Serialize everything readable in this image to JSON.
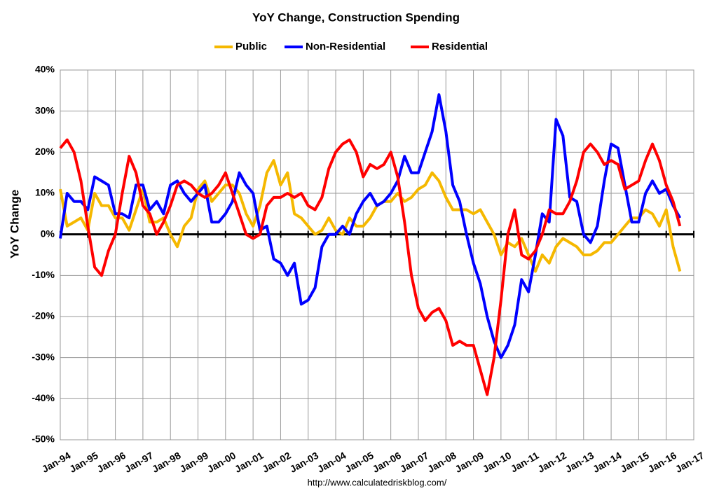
{
  "chart_data": {
    "type": "line",
    "title": "YoY Change,  Construction Spending",
    "y_label": "YoY Change",
    "source": "http://www.calculatedriskblog.com/",
    "grid": true,
    "legend": "top",
    "xlim": [
      1994,
      2017
    ],
    "xticks": [
      {
        "value": 1994,
        "label": "Jan-94"
      },
      {
        "value": 1995,
        "label": "Jan-95"
      },
      {
        "value": 1996,
        "label": "Jan-96"
      },
      {
        "value": 1997,
        "label": "Jan-97"
      },
      {
        "value": 1998,
        "label": "Jan-98"
      },
      {
        "value": 1999,
        "label": "Jan-99"
      },
      {
        "value": 2000,
        "label": "Jan-00"
      },
      {
        "value": 2001,
        "label": "Jan-01"
      },
      {
        "value": 2002,
        "label": "Jan-02"
      },
      {
        "value": 2003,
        "label": "Jan-03"
      },
      {
        "value": 2004,
        "label": "Jan-04"
      },
      {
        "value": 2005,
        "label": "Jan-05"
      },
      {
        "value": 2006,
        "label": "Jan-06"
      },
      {
        "value": 2007,
        "label": "Jan-07"
      },
      {
        "value": 2008,
        "label": "Jan-08"
      },
      {
        "value": 2009,
        "label": "Jan-09"
      },
      {
        "value": 2010,
        "label": "Jan-10"
      },
      {
        "value": 2011,
        "label": "Jan-11"
      },
      {
        "value": 2012,
        "label": "Jan-12"
      },
      {
        "value": 2013,
        "label": "Jan-13"
      },
      {
        "value": 2014,
        "label": "Jan-14"
      },
      {
        "value": 2015,
        "label": "Jan-15"
      },
      {
        "value": 2016,
        "label": "Jan-16"
      },
      {
        "value": 2017,
        "label": "Jan-17"
      }
    ],
    "ylim": [
      -50,
      40
    ],
    "yticks": [
      {
        "value": -50,
        "label": "-50%"
      },
      {
        "value": -40,
        "label": "-40%"
      },
      {
        "value": -30,
        "label": "-30%"
      },
      {
        "value": -20,
        "label": "-20%"
      },
      {
        "value": -10,
        "label": "-10%"
      },
      {
        "value": 0,
        "label": "0%"
      },
      {
        "value": 10,
        "label": "10%"
      },
      {
        "value": 20,
        "label": "20%"
      },
      {
        "value": 30,
        "label": "30%"
      },
      {
        "value": 40,
        "label": "40%"
      }
    ],
    "x": [
      1994,
      1994.25,
      1994.5,
      1994.75,
      1995,
      1995.25,
      1995.5,
      1995.75,
      1996,
      1996.25,
      1996.5,
      1996.75,
      1997,
      1997.25,
      1997.5,
      1997.75,
      1998,
      1998.25,
      1998.5,
      1998.75,
      1999,
      1999.25,
      1999.5,
      1999.75,
      2000,
      2000.25,
      2000.5,
      2000.75,
      2001,
      2001.25,
      2001.5,
      2001.75,
      2002,
      2002.25,
      2002.5,
      2002.75,
      2003,
      2003.25,
      2003.5,
      2003.75,
      2004,
      2004.25,
      2004.5,
      2004.75,
      2005,
      2005.25,
      2005.5,
      2005.75,
      2006,
      2006.25,
      2006.5,
      2006.75,
      2007,
      2007.25,
      2007.5,
      2007.75,
      2008,
      2008.25,
      2008.5,
      2008.75,
      2009,
      2009.25,
      2009.5,
      2009.75,
      2010,
      2010.25,
      2010.5,
      2010.75,
      2011,
      2011.25,
      2011.5,
      2011.75,
      2012,
      2012.25,
      2012.5,
      2012.75,
      2013,
      2013.25,
      2013.5,
      2013.75,
      2014,
      2014.25,
      2014.5,
      2014.75,
      2015,
      2015.25,
      2015.5,
      2015.75,
      2016,
      2016.25,
      2016.5
    ],
    "series": [
      {
        "name": "Public",
        "color": "#f5b800",
        "values": [
          11,
          2,
          3,
          4,
          1,
          10,
          7,
          7,
          4,
          4,
          1,
          6,
          11,
          3,
          3,
          4,
          0,
          -3,
          2,
          4,
          11,
          13,
          8,
          10,
          12,
          12,
          10,
          5,
          2,
          7,
          15,
          18,
          12,
          15,
          5,
          4,
          2,
          0,
          1,
          4,
          1,
          0,
          4,
          2,
          2,
          4,
          7,
          8,
          8,
          10,
          8,
          9,
          11,
          12,
          15,
          13,
          9,
          6,
          6,
          6,
          5,
          6,
          3,
          0,
          -5,
          -2,
          -3,
          -1,
          -5,
          -9,
          -5,
          -7,
          -3,
          -1,
          -2,
          -3,
          -5,
          -5,
          -4,
          -2,
          -2,
          0,
          2,
          4,
          4,
          6,
          5,
          2,
          6,
          -3,
          -9
        ]
      },
      {
        "name": "Non-Residential",
        "color": "#0000ff",
        "values": [
          -1,
          10,
          8,
          8,
          6,
          14,
          13,
          12,
          5,
          5,
          4,
          12,
          12,
          6,
          8,
          5,
          12,
          13,
          10,
          8,
          10,
          12,
          3,
          3,
          5,
          8,
          15,
          12,
          10,
          1,
          2,
          -6,
          -7,
          -10,
          -7,
          -17,
          -16,
          -13,
          -3,
          0,
          0,
          2,
          0,
          5,
          8,
          10,
          7,
          8,
          10,
          13,
          19,
          15,
          15,
          20,
          25,
          34,
          25,
          12,
          8,
          0,
          -7,
          -12,
          -20,
          -26,
          -30,
          -27,
          -22,
          -11,
          -14,
          -5,
          5,
          3,
          28,
          24,
          9,
          8,
          0,
          -2,
          2,
          13,
          22,
          21,
          12,
          3,
          3,
          10,
          13,
          10,
          11,
          7,
          4
        ]
      },
      {
        "name": "Residential",
        "color": "#ff0000",
        "values": [
          21,
          23,
          20,
          13,
          2,
          -8,
          -10,
          -4,
          0,
          10,
          19,
          15,
          7,
          5,
          0,
          3,
          7,
          12,
          13,
          12,
          10,
          9,
          10,
          12,
          15,
          10,
          5,
          0,
          -1,
          0,
          7,
          9,
          9,
          10,
          9,
          10,
          7,
          6,
          9,
          16,
          20,
          22,
          23,
          20,
          14,
          17,
          16,
          17,
          20,
          14,
          3,
          -10,
          -18,
          -21,
          -19,
          -18,
          -21,
          -27,
          -26,
          -27,
          -27,
          -33,
          -39,
          -30,
          -16,
          0,
          6,
          -5,
          -6,
          -4,
          0,
          6,
          5,
          5,
          8,
          13,
          20,
          22,
          20,
          17,
          18,
          17,
          11,
          12,
          13,
          18,
          22,
          18,
          12,
          8,
          2
        ]
      }
    ]
  }
}
